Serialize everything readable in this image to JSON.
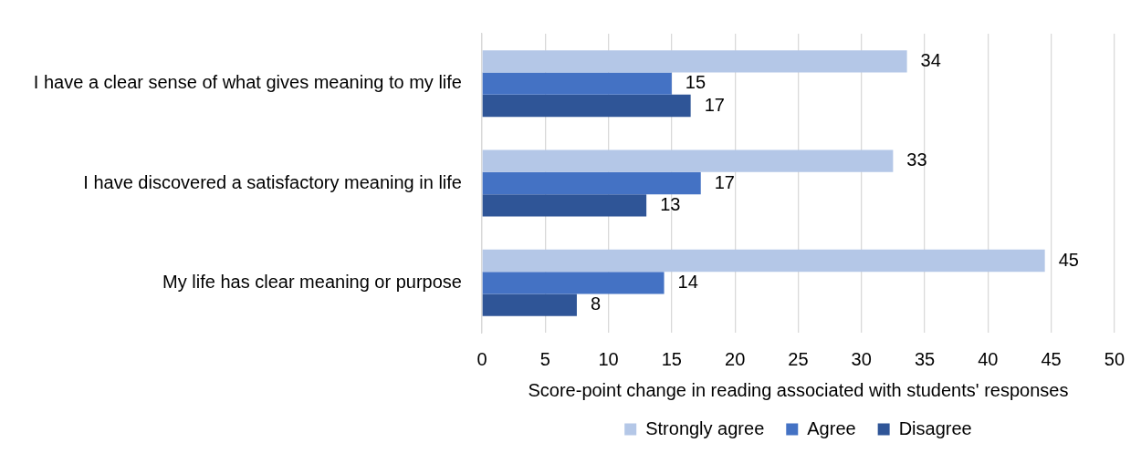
{
  "chart_data": {
    "type": "bar",
    "orientation": "horizontal",
    "categories": [
      "I have a clear sense of what gives meaning to my life",
      "I have discovered a satisfactory meaning in life",
      "My life has clear meaning or purpose"
    ],
    "series": [
      {
        "name": "Strongly agree",
        "color": "#b4c7e7",
        "values": [
          33.6,
          32.5,
          44.5
        ],
        "value_labels": [
          "34",
          "33",
          "45"
        ]
      },
      {
        "name": "Agree",
        "color": "#4472c4",
        "values": [
          15.0,
          17.3,
          14.4
        ],
        "value_labels": [
          "15",
          "17",
          "14"
        ]
      },
      {
        "name": "Disagree",
        "color": "#2f5597",
        "values": [
          16.5,
          13.0,
          7.5
        ],
        "value_labels": [
          "17",
          "13",
          "8"
        ]
      }
    ],
    "xlim": [
      0,
      50
    ],
    "xticks": [
      0,
      5,
      10,
      15,
      20,
      25,
      30,
      35,
      40,
      45,
      50
    ],
    "xlabel": "Score-point change in reading associated with students' responses",
    "grid": "x",
    "legend": "bottom"
  }
}
